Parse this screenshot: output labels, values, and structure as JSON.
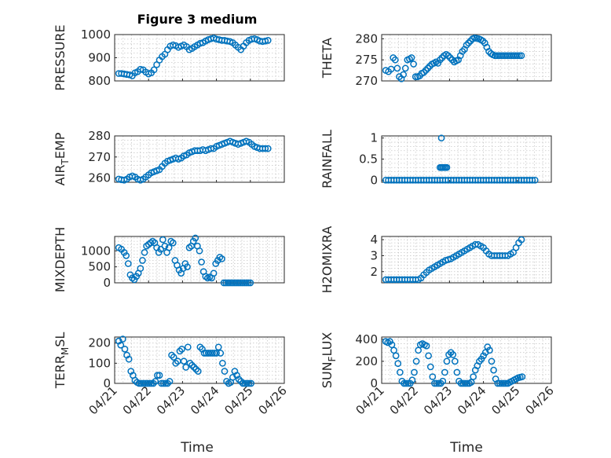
{
  "colors": {
    "series": "#0072BD",
    "axis": "#262626",
    "grid": "#c8c8c8"
  },
  "chart_data": [
    {
      "id": "pressure",
      "type": "scatter",
      "title": "Figure 3 medium",
      "ylabel_main": "PRESSURE",
      "ylabel_sub": "",
      "ylabel_tail": "",
      "ylim": [
        800,
        1000
      ],
      "yticks": [
        800,
        900,
        1000
      ],
      "ytick_labels": [
        "800",
        "900",
        "1000"
      ],
      "xlim": [
        0,
        5
      ],
      "grid": true,
      "x": [
        0.12,
        0.2,
        0.28,
        0.36,
        0.44,
        0.52,
        0.6,
        0.68,
        0.76,
        0.84,
        0.92,
        1.0,
        1.08,
        1.16,
        1.24,
        1.32,
        1.4,
        1.48,
        1.56,
        1.64,
        1.72,
        1.8,
        1.88,
        1.96,
        2.04,
        2.12,
        2.2,
        2.28,
        2.36,
        2.44,
        2.52,
        2.6,
        2.68,
        2.76,
        2.84,
        2.92,
        3.0,
        3.08,
        3.16,
        3.24,
        3.32,
        3.4,
        3.48,
        3.56,
        3.64,
        3.72,
        3.8,
        3.88,
        3.96,
        4.04,
        4.12,
        4.2,
        4.28,
        4.36,
        4.44,
        4.52
      ],
      "y": [
        832,
        832,
        830,
        828,
        826,
        822,
        835,
        840,
        850,
        848,
        838,
        830,
        835,
        848,
        870,
        890,
        905,
        915,
        935,
        950,
        955,
        952,
        945,
        950,
        955,
        948,
        935,
        940,
        948,
        955,
        962,
        965,
        972,
        978,
        982,
        985,
        980,
        978,
        975,
        975,
        972,
        970,
        965,
        955,
        945,
        935,
        950,
        965,
        975,
        980,
        982,
        978,
        972,
        970,
        972,
        975
      ]
    },
    {
      "id": "theta",
      "type": "scatter",
      "ylabel_main": "THETA",
      "ylabel_sub": "",
      "ylabel_tail": "",
      "ylim": [
        270,
        281
      ],
      "yticks": [
        270,
        275,
        280
      ],
      "ytick_labels": [
        "270",
        "275",
        "280"
      ],
      "xlim": [
        0,
        5
      ],
      "grid": true,
      "x": [
        0.12,
        0.2,
        0.28,
        0.34,
        0.4,
        0.46,
        0.52,
        0.58,
        0.64,
        0.7,
        0.76,
        0.82,
        0.88,
        0.94,
        1.0,
        1.06,
        1.12,
        1.18,
        1.24,
        1.3,
        1.36,
        1.42,
        1.48,
        1.54,
        1.6,
        1.66,
        1.72,
        1.78,
        1.84,
        1.9,
        1.96,
        2.02,
        2.08,
        2.14,
        2.2,
        2.26,
        2.32,
        2.38,
        2.44,
        2.5,
        2.56,
        2.62,
        2.68,
        2.74,
        2.8,
        2.86,
        2.92,
        2.98,
        3.04,
        3.1,
        3.16,
        3.22,
        3.28,
        3.34,
        3.4,
        3.46,
        3.52,
        3.58,
        3.64,
        3.7,
        3.76,
        3.82,
        3.88,
        3.94,
        4.0,
        4.06,
        4.12
      ],
      "y": [
        272.5,
        272.2,
        272.8,
        275.5,
        275,
        273,
        271,
        270.5,
        271.5,
        273,
        275,
        275.2,
        275.5,
        274,
        271,
        271,
        271.2,
        271.8,
        272,
        272.5,
        273,
        273.5,
        274,
        274.2,
        274.5,
        274.2,
        275,
        275.5,
        276,
        276.3,
        276,
        275.5,
        275,
        274.5,
        274.8,
        275,
        276,
        277,
        277.5,
        278.5,
        279,
        279.5,
        280,
        280.2,
        280.1,
        280,
        279.8,
        279.5,
        279,
        278,
        277,
        276.5,
        276.2,
        276,
        276,
        276,
        276,
        276,
        276,
        276,
        276,
        276,
        276,
        276,
        276,
        276,
        276
      ]
    },
    {
      "id": "air-temp",
      "type": "scatter",
      "ylabel_main": "AIR",
      "ylabel_sub": "T",
      "ylabel_tail": "EMP",
      "ylim": [
        258,
        280
      ],
      "yticks": [
        260,
        270,
        280
      ],
      "ytick_labels": [
        "260",
        "270",
        "280"
      ],
      "xlim": [
        0,
        5
      ],
      "grid": true,
      "x": [
        0.12,
        0.2,
        0.28,
        0.36,
        0.44,
        0.52,
        0.6,
        0.68,
        0.76,
        0.84,
        0.92,
        1.0,
        1.08,
        1.16,
        1.24,
        1.32,
        1.4,
        1.48,
        1.56,
        1.64,
        1.72,
        1.8,
        1.88,
        1.96,
        2.04,
        2.12,
        2.2,
        2.28,
        2.36,
        2.44,
        2.52,
        2.6,
        2.68,
        2.76,
        2.84,
        2.92,
        3.0,
        3.08,
        3.16,
        3.24,
        3.32,
        3.4,
        3.48,
        3.56,
        3.64,
        3.72,
        3.8,
        3.88,
        3.96,
        4.04,
        4.12,
        4.2,
        4.28,
        4.36,
        4.44,
        4.52
      ],
      "y": [
        259.5,
        259.2,
        259,
        259.5,
        260.5,
        261,
        260.5,
        259.5,
        259,
        259.5,
        260.5,
        261.5,
        262.5,
        263,
        263.5,
        264,
        265.5,
        267,
        268,
        268.5,
        269,
        269.5,
        269,
        269.5,
        270.5,
        271,
        272,
        272.5,
        273,
        273,
        273,
        273.5,
        273,
        273.5,
        274,
        274,
        275,
        275.5,
        276,
        276.5,
        277,
        277.5,
        277,
        276.5,
        276,
        276.5,
        277,
        277.5,
        277,
        276,
        275,
        274.5,
        274,
        274,
        274,
        274
      ]
    },
    {
      "id": "rainfall",
      "type": "scatter",
      "ylabel_main": "RAINFALL",
      "ylabel_sub": "",
      "ylabel_tail": "",
      "ylim": [
        -0.05,
        1.05
      ],
      "yticks": [
        0,
        0.5,
        1
      ],
      "ytick_labels": [
        "0",
        "0.5",
        "1"
      ],
      "xlim": [
        0,
        5
      ],
      "grid": true,
      "x": [
        0.12,
        0.2,
        0.28,
        0.36,
        0.44,
        0.52,
        0.6,
        0.68,
        0.76,
        0.84,
        0.92,
        1.0,
        1.08,
        1.16,
        1.24,
        1.32,
        1.4,
        1.48,
        1.56,
        1.64,
        1.72,
        1.8,
        1.88,
        1.96,
        2.04,
        2.12,
        2.2,
        2.28,
        2.36,
        2.44,
        2.52,
        2.6,
        2.68,
        2.76,
        2.84,
        2.92,
        3.0,
        3.08,
        3.16,
        3.24,
        3.32,
        3.4,
        3.48,
        3.56,
        3.64,
        3.72,
        3.8,
        3.88,
        3.96,
        4.04,
        4.12,
        4.2,
        4.28,
        4.36,
        4.44,
        4.52,
        1.72,
        1.76,
        1.8,
        1.84,
        1.88,
        1.92,
        1.76
      ],
      "y": [
        0,
        0,
        0,
        0,
        0,
        0,
        0,
        0,
        0,
        0,
        0,
        0,
        0,
        0,
        0,
        0,
        0,
        0,
        0,
        0,
        0,
        0,
        0,
        0,
        0,
        0,
        0,
        0,
        0,
        0,
        0,
        0,
        0,
        0,
        0,
        0,
        0,
        0,
        0,
        0,
        0,
        0,
        0,
        0,
        0,
        0,
        0,
        0,
        0,
        0,
        0,
        0,
        0,
        0,
        0,
        0,
        0.3,
        0.3,
        0.3,
        0.3,
        0.3,
        0.3,
        1.0
      ]
    },
    {
      "id": "mixdepth",
      "type": "scatter",
      "ylabel_main": "MIXDEPTH",
      "ylabel_sub": "",
      "ylabel_tail": "",
      "ylim": [
        0,
        1450
      ],
      "yticks": [
        0,
        500,
        1000
      ],
      "ytick_labels": [
        "0",
        "500",
        "1000"
      ],
      "xlim": [
        0,
        5
      ],
      "grid": true,
      "x": [
        0.12,
        0.2,
        0.28,
        0.34,
        0.4,
        0.46,
        0.52,
        0.58,
        0.64,
        0.7,
        0.76,
        0.82,
        0.88,
        0.94,
        1.0,
        1.06,
        1.12,
        1.18,
        1.24,
        1.3,
        1.36,
        1.42,
        1.48,
        1.54,
        1.6,
        1.66,
        1.72,
        1.78,
        1.84,
        1.9,
        1.96,
        2.02,
        2.08,
        2.14,
        2.2,
        2.26,
        2.32,
        2.38,
        2.44,
        2.5,
        2.56,
        2.62,
        2.68,
        2.74,
        2.8,
        2.86,
        2.92,
        2.98,
        3.04,
        3.1,
        3.16,
        3.22,
        3.28,
        3.34,
        3.4,
        3.46,
        3.52,
        3.58,
        3.64,
        3.7,
        3.76,
        3.82,
        3.88,
        3.94,
        4.0
      ],
      "y": [
        1100,
        1050,
        950,
        850,
        600,
        250,
        150,
        100,
        200,
        300,
        450,
        700,
        950,
        1150,
        1200,
        1250,
        1300,
        1250,
        1100,
        950,
        1050,
        1350,
        1150,
        950,
        1100,
        1300,
        1250,
        700,
        550,
        400,
        300,
        450,
        600,
        500,
        1100,
        1150,
        1300,
        1400,
        1150,
        1000,
        650,
        350,
        200,
        150,
        180,
        150,
        300,
        600,
        700,
        800,
        750,
        0,
        0,
        0,
        0,
        0,
        0,
        0,
        0,
        0,
        0,
        0,
        0,
        0,
        0
      ]
    },
    {
      "id": "h2o-mixratio",
      "type": "scatter",
      "ylabel_main": "H2OMIXRA",
      "ylabel_sub": "",
      "ylabel_tail": "",
      "ylim": [
        1.3,
        4.2
      ],
      "yticks": [
        2,
        3,
        4
      ],
      "ytick_labels": [
        "2",
        "3",
        "4"
      ],
      "xlim": [
        0,
        5
      ],
      "grid": true,
      "x": [
        0.12,
        0.2,
        0.28,
        0.36,
        0.44,
        0.52,
        0.6,
        0.68,
        0.76,
        0.84,
        0.92,
        1.0,
        1.08,
        1.16,
        1.24,
        1.32,
        1.4,
        1.48,
        1.56,
        1.64,
        1.72,
        1.8,
        1.88,
        1.96,
        2.04,
        2.12,
        2.2,
        2.28,
        2.36,
        2.44,
        2.52,
        2.6,
        2.68,
        2.76,
        2.84,
        2.92,
        3.0,
        3.08,
        3.16,
        3.24,
        3.32,
        3.4,
        3.48,
        3.56,
        3.64,
        3.72,
        3.8,
        3.88,
        3.96,
        4.04,
        4.12
      ],
      "y": [
        1.5,
        1.5,
        1.5,
        1.5,
        1.5,
        1.5,
        1.5,
        1.5,
        1.5,
        1.5,
        1.5,
        1.5,
        1.5,
        1.6,
        1.8,
        1.95,
        2.1,
        2.2,
        2.3,
        2.4,
        2.5,
        2.6,
        2.7,
        2.75,
        2.8,
        2.9,
        3.0,
        3.1,
        3.2,
        3.3,
        3.4,
        3.5,
        3.6,
        3.7,
        3.7,
        3.6,
        3.5,
        3.3,
        3.1,
        3.0,
        3.0,
        3.0,
        3.0,
        3.0,
        3.0,
        3.0,
        3.1,
        3.2,
        3.5,
        3.8,
        4.0
      ]
    },
    {
      "id": "terr-msl",
      "type": "scatter",
      "ylabel_main": "TERR",
      "ylabel_sub": "M",
      "ylabel_tail": "SL",
      "ylim": [
        0,
        230
      ],
      "yticks": [
        0,
        100,
        200
      ],
      "ytick_labels": [
        "0",
        "100",
        "200"
      ],
      "xlim": [
        0,
        5
      ],
      "grid": true,
      "x": [
        0.12,
        0.18,
        0.24,
        0.3,
        0.36,
        0.42,
        0.48,
        0.54,
        0.6,
        0.66,
        0.72,
        0.78,
        0.84,
        0.9,
        0.96,
        1.02,
        1.08,
        1.14,
        1.2,
        1.26,
        1.32,
        1.38,
        1.44,
        1.5,
        1.56,
        1.62,
        1.68,
        1.74,
        1.8,
        1.86,
        1.92,
        1.98,
        2.04,
        2.1,
        2.16,
        2.22,
        2.28,
        2.34,
        2.4,
        2.46,
        2.52,
        2.58,
        2.64,
        2.7,
        2.76,
        2.82,
        2.88,
        2.94,
        3.0,
        3.06,
        3.12,
        3.18,
        3.24,
        3.3,
        3.36,
        3.42,
        3.48,
        3.54,
        3.6,
        3.66,
        3.72,
        3.78,
        3.84,
        3.9,
        3.96,
        4.02
      ],
      "y": [
        210,
        190,
        220,
        170,
        140,
        120,
        60,
        40,
        15,
        5,
        0,
        0,
        0,
        0,
        0,
        0,
        0,
        0,
        10,
        40,
        40,
        0,
        0,
        0,
        0,
        10,
        140,
        130,
        100,
        110,
        160,
        170,
        110,
        80,
        180,
        100,
        90,
        80,
        70,
        60,
        180,
        170,
        150,
        150,
        150,
        150,
        150,
        150,
        150,
        180,
        150,
        100,
        60,
        10,
        0,
        5,
        30,
        60,
        40,
        20,
        10,
        0,
        0,
        0,
        0,
        0
      ]
    },
    {
      "id": "sun-flux",
      "type": "scatter",
      "ylabel_main": "SUN",
      "ylabel_sub": "F",
      "ylabel_tail": "LUX",
      "ylim": [
        0,
        420
      ],
      "yticks": [
        0,
        200,
        400
      ],
      "ytick_labels": [
        "0",
        "200",
        "400"
      ],
      "xlim": [
        0,
        5
      ],
      "grid": true,
      "x": [
        0.12,
        0.18,
        0.24,
        0.3,
        0.36,
        0.42,
        0.48,
        0.54,
        0.6,
        0.66,
        0.72,
        0.78,
        0.84,
        0.9,
        0.96,
        1.02,
        1.08,
        1.14,
        1.2,
        1.26,
        1.32,
        1.38,
        1.44,
        1.5,
        1.56,
        1.62,
        1.68,
        1.74,
        1.8,
        1.86,
        1.92,
        1.98,
        2.04,
        2.1,
        2.16,
        2.22,
        2.28,
        2.34,
        2.4,
        2.46,
        2.52,
        2.58,
        2.64,
        2.7,
        2.76,
        2.82,
        2.88,
        2.94,
        3.0,
        3.06,
        3.12,
        3.18,
        3.24,
        3.3,
        3.36,
        3.42,
        3.48,
        3.54,
        3.6,
        3.66,
        3.72,
        3.78,
        3.84,
        3.9,
        3.96,
        4.02,
        4.08,
        4.14
      ],
      "y": [
        380,
        370,
        380,
        350,
        300,
        250,
        180,
        100,
        20,
        0,
        0,
        0,
        0,
        30,
        100,
        200,
        300,
        350,
        360,
        350,
        340,
        250,
        150,
        60,
        0,
        0,
        0,
        0,
        20,
        100,
        200,
        260,
        280,
        260,
        200,
        100,
        20,
        0,
        0,
        0,
        0,
        0,
        10,
        60,
        120,
        160,
        200,
        220,
        250,
        280,
        330,
        300,
        200,
        120,
        40,
        0,
        0,
        0,
        0,
        0,
        0,
        10,
        20,
        30,
        40,
        50,
        55,
        60
      ]
    }
  ],
  "x_axis": {
    "xlabel": "Time",
    "xticks": [
      0,
      1,
      2,
      3,
      4,
      5
    ],
    "xtick_labels": [
      "04/21",
      "04/22",
      "04/23",
      "04/24",
      "04/25",
      "04/26"
    ]
  }
}
